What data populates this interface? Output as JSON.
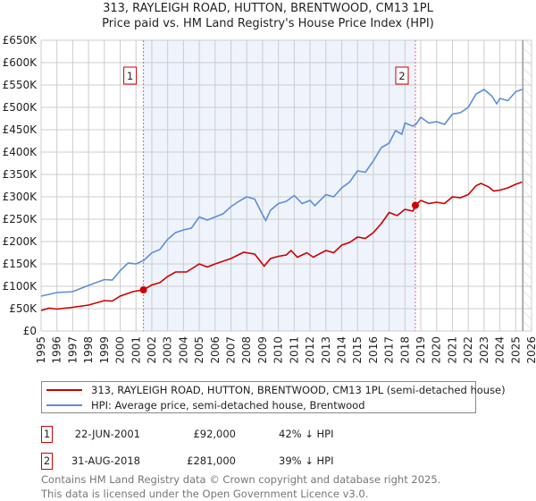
{
  "chart_data": {
    "type": "line",
    "title": "313, RAYLEIGH ROAD, HUTTON, BRENTWOOD, CM13 1PL",
    "subtitle": "Price paid vs. HM Land Registry's House Price Index (HPI)",
    "xlim": [
      1995,
      2026
    ],
    "ylim": [
      0,
      650000
    ],
    "x_ticks": [
      "1995",
      "1996",
      "1997",
      "1998",
      "1999",
      "2000",
      "2001",
      "2002",
      "2003",
      "2004",
      "2005",
      "2006",
      "2007",
      "2008",
      "2009",
      "2010",
      "2011",
      "2012",
      "2013",
      "2014",
      "2015",
      "2016",
      "2017",
      "2018",
      "2019",
      "2020",
      "2021",
      "2022",
      "2023",
      "2024",
      "2025",
      "2026"
    ],
    "y_ticks": [
      "£0",
      "£50K",
      "£100K",
      "£150K",
      "£200K",
      "£250K",
      "£300K",
      "£350K",
      "£400K",
      "£450K",
      "£500K",
      "£550K",
      "£600K",
      "£650K"
    ],
    "grid": true,
    "shaded_period": [
      2001.47,
      2018.66
    ],
    "forecast_hatch_from": 2025.45,
    "series": [
      {
        "name": "313, RAYLEIGH ROAD, HUTTON, BRENTWOOD, CM13 1PL (semi-detached house)",
        "color": "#cc0000",
        "x": [
          1995,
          1995.5,
          1996,
          1997,
          1998,
          1999,
          1999.5,
          2000,
          2000.8,
          2001.47,
          2002,
          2002.5,
          2003,
          2003.5,
          2004.2,
          2005,
          2005.5,
          2006,
          2007,
          2007.8,
          2008.5,
          2009.1,
          2009.5,
          2010,
          2010.5,
          2010.8,
          2011.2,
          2011.8,
          2012.2,
          2013,
          2013.5,
          2014,
          2014.5,
          2015,
          2015.5,
          2016,
          2016.5,
          2017,
          2017.5,
          2018,
          2018.5,
          2018.66,
          2019,
          2019.5,
          2020,
          2020.5,
          2021,
          2021.5,
          2022,
          2022.5,
          2022.8,
          2023.3,
          2023.6,
          2024,
          2024.5,
          2025,
          2025.4
        ],
        "y": [
          46000,
          51000,
          49000,
          53000,
          58000,
          68000,
          67000,
          78000,
          88000,
          92000,
          103000,
          108000,
          122000,
          132000,
          132000,
          150000,
          143000,
          150000,
          162000,
          176000,
          172000,
          145000,
          162000,
          167000,
          170000,
          180000,
          165000,
          175000,
          165000,
          180000,
          175000,
          192000,
          198000,
          210000,
          207000,
          220000,
          240000,
          265000,
          258000,
          272000,
          268000,
          281000,
          292000,
          285000,
          288000,
          285000,
          300000,
          298000,
          305000,
          325000,
          330000,
          322000,
          313000,
          315000,
          320000,
          328000,
          333000
        ]
      },
      {
        "name": "HPI: Average price, semi-detached house, Brentwood",
        "color": "#5b8fd6",
        "x": [
          1995,
          1996,
          1997,
          1998,
          1999,
          1999.5,
          2000,
          2000.5,
          2001,
          2001.5,
          2002,
          2002.5,
          2003,
          2003.5,
          2004,
          2004.5,
          2005,
          2005.5,
          2006,
          2006.5,
          2007,
          2007.5,
          2008,
          2008.5,
          2009,
          2009.2,
          2009.5,
          2010,
          2010.5,
          2011,
          2011.5,
          2012,
          2012.3,
          2013,
          2013.5,
          2014,
          2014.5,
          2015,
          2015.5,
          2016,
          2016.5,
          2017,
          2017.4,
          2017.8,
          2018,
          2018.5,
          2018.7,
          2019,
          2019.5,
          2020,
          2020.5,
          2021,
          2021.5,
          2022,
          2022.5,
          2023,
          2023.5,
          2023.8,
          2024,
          2024.5,
          2025,
          2025.4
        ],
        "y": [
          78000,
          86000,
          88000,
          102000,
          115000,
          114000,
          135000,
          152000,
          150000,
          158000,
          175000,
          182000,
          205000,
          220000,
          226000,
          230000,
          255000,
          248000,
          255000,
          262000,
          278000,
          290000,
          300000,
          295000,
          260000,
          247000,
          270000,
          285000,
          290000,
          303000,
          285000,
          292000,
          280000,
          305000,
          300000,
          320000,
          333000,
          358000,
          355000,
          380000,
          410000,
          420000,
          448000,
          440000,
          465000,
          458000,
          462000,
          478000,
          465000,
          468000,
          462000,
          485000,
          488000,
          500000,
          530000,
          540000,
          525000,
          508000,
          520000,
          515000,
          535000,
          540000
        ]
      }
    ],
    "sales": [
      {
        "label": "1",
        "x": 2001.47,
        "y": 92000,
        "date": "22-JUN-2001",
        "price": "£92,000",
        "hpi_diff": "42% ↓ HPI"
      },
      {
        "label": "2",
        "x": 2018.66,
        "y": 281000,
        "date": "31-AUG-2018",
        "price": "£281,000",
        "hpi_diff": "39% ↓ HPI"
      }
    ]
  },
  "legend": {
    "red_label": "313, RAYLEIGH ROAD, HUTTON, BRENTWOOD, CM13 1PL (semi-detached house)",
    "blue_label": "HPI: Average price, semi-detached house, Brentwood"
  },
  "footer": {
    "line1": "Contains HM Land Registry data © Crown copyright and database right 2025.",
    "line2": "This data is licensed under the Open Government Licence v3.0."
  }
}
